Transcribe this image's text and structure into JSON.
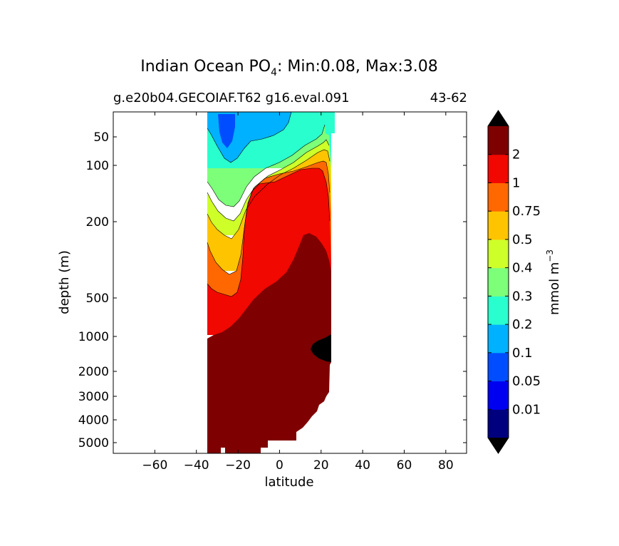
{
  "chart_data": {
    "type": "contour",
    "title_prefix": "Indian Ocean PO",
    "title_subscript": "4",
    "title_suffix": ": Min:0.08, Max:3.08",
    "subtitle_left": "g.e20b04.GECOIAF.T62 g16.eval.091",
    "subtitle_right": "43-62",
    "xlabel": "latitude",
    "ylabel": "depth (m)",
    "xlim": [
      -80,
      90
    ],
    "x_ticks": [
      -60,
      -40,
      -20,
      0,
      20,
      40,
      60,
      80
    ],
    "x_tick_labels": [
      "−60",
      "−40",
      "−20",
      "0",
      "20",
      "40",
      "60",
      "80"
    ],
    "y_scale": "nonlinear (compressed at depth)",
    "y_ticks": [
      50,
      100,
      200,
      500,
      1000,
      2000,
      3000,
      4000,
      5000
    ],
    "y_tick_labels": [
      "50",
      "100",
      "200",
      "500",
      "1000",
      "2000",
      "3000",
      "4000",
      "5000"
    ],
    "data_extent_latitude": [
      -34,
      26
    ],
    "colorbar": {
      "label": "mmol m",
      "label_superscript": "−3",
      "extend": "both",
      "levels": [
        0.01,
        0.05,
        0.1,
        0.2,
        0.3,
        0.4,
        0.5,
        0.75,
        1,
        2
      ],
      "level_labels": [
        "0.01",
        "0.05",
        "0.1",
        "0.2",
        "0.3",
        "0.4",
        "0.5",
        "0.75",
        "1",
        "2"
      ],
      "colors": [
        "#00007f",
        "#0000f1",
        "#004dff",
        "#00b1ff",
        "#29ffce",
        "#7dff7a",
        "#ceff29",
        "#ffc400",
        "#ff6800",
        "#f10800",
        "#7f0000"
      ],
      "under_color": "#000000",
      "over_color": "#000000"
    }
  }
}
